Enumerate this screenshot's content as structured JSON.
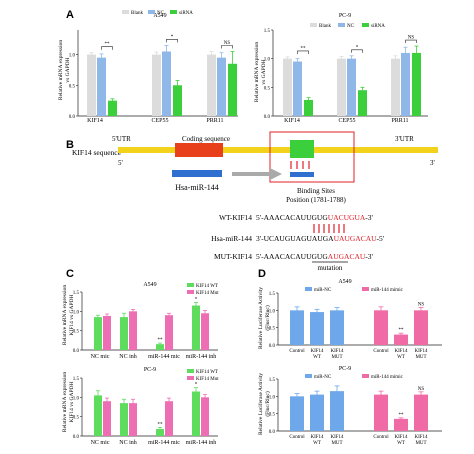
{
  "panels": {
    "a": {
      "letter": "A",
      "ylabel_line1": "Relative mRNA expression",
      "ylabel_line2": "vs GAPDH",
      "legend": [
        "Blank",
        "NC",
        "siRNA"
      ],
      "charts": [
        {
          "title": "A549",
          "categories": [
            "KIF14",
            "CEP55",
            "PRR11"
          ],
          "sig": [
            "**",
            "*",
            "NS"
          ]
        },
        {
          "title": "PC-9",
          "categories": [
            "KIF14",
            "CEP55",
            "PRR11"
          ],
          "sig": [
            "**",
            "*",
            "NS"
          ]
        }
      ]
    },
    "b": {
      "letter": "B",
      "utr5": "5'UTR",
      "coding": "Coding sequence",
      "utr3": "3'UTR",
      "gene_label": "KIF14 sequence",
      "five": "5'",
      "three": "3'",
      "mirna": "Hsa-miR-144",
      "binding_title": "Binding Sites",
      "binding_position": "Position (1781-1788)",
      "wt_label": "WT-KIF14",
      "wt_seq_black": "5'-AAACACAUUGUG",
      "wt_seq_red": "UACUGUA",
      "wt_seq_end": "-3'",
      "mir_label": "Hsa-miR-144",
      "mir_seq_black": "3'-UCAUGUAGUAUGA",
      "mir_seq_red": "UAUGACAU",
      "mir_seq_end": "-5'",
      "mut_label": "MUT-KIF14",
      "mut_seq_black": "5'-AAACACAUUGUG",
      "mut_seq_red": "AUGACAU",
      "mut_seq_end": "-3'",
      "mutation_label": "mutation"
    },
    "c": {
      "letter": "C",
      "ylabel_line1": "Relative mRNA expression",
      "ylabel_line2": "KIF14 vs GAPDH",
      "legend": [
        "KIF14 WT",
        "KIF14 Mut"
      ],
      "charts": [
        {
          "title": "A549",
          "sig": [
            "",
            "",
            "**",
            "*"
          ]
        },
        {
          "title": "PC-9",
          "sig": [
            "",
            "",
            "**",
            "*"
          ]
        }
      ],
      "categories": [
        "NC mic",
        "NC inh",
        "miR-144 mic",
        "miR-144 inh"
      ]
    },
    "d": {
      "letter": "D",
      "ylabel_line1": "Relative Luciferase Activity",
      "ylabel_line2": "(Fluc/Rluc)",
      "legend": [
        "miR-NC",
        "miR-144 mimic"
      ],
      "charts": [
        {
          "title": "A549",
          "sig": [
            "",
            "",
            "",
            "",
            "**",
            "NS"
          ]
        },
        {
          "title": "PC-9",
          "sig": [
            "",
            "",
            "",
            "",
            "**",
            "NS"
          ]
        }
      ],
      "categories": [
        "Control",
        "KIF14 WT",
        "KIF14 MUT",
        "Control",
        "KIF14 WT",
        "KIF14 MUT"
      ]
    }
  },
  "colors": {
    "blank": "#dcdcdc",
    "nc": "#8fb8e8",
    "sirna": "#3ccf3c",
    "wt": "#5ddc5d",
    "mut": "#ee6eb4",
    "mirnc": "#6fa8ea",
    "mimic": "#f06aa6",
    "gene_bar": "#f2d21a",
    "coding": "#e8401a",
    "site": "#3ccf3c",
    "mir_bar": "#2f6fd0",
    "red_text": "#e0202a"
  },
  "chart_data": [
    {
      "type": "bar",
      "title": "A549",
      "categories": [
        "KIF14",
        "CEP55",
        "PRR11"
      ],
      "series": [
        {
          "name": "Blank",
          "values": [
            1.0,
            1.0,
            1.0
          ]
        },
        {
          "name": "NC",
          "values": [
            0.95,
            1.05,
            0.95
          ]
        },
        {
          "name": "siRNA",
          "values": [
            0.25,
            0.5,
            0.85
          ]
        }
      ],
      "errors": [
        [
          0.03,
          0.04,
          0.05
        ],
        [
          0.06,
          0.1,
          0.08
        ],
        [
          0.03,
          0.08,
          0.2
        ]
      ],
      "ylim": [
        0,
        1.4
      ],
      "yticks": [
        0,
        0.5,
        1.0
      ]
    },
    {
      "type": "bar",
      "title": "PC-9",
      "categories": [
        "KIF14",
        "CEP55",
        "PRR11"
      ],
      "series": [
        {
          "name": "Blank",
          "values": [
            1.0,
            1.0,
            1.0
          ]
        },
        {
          "name": "NC",
          "values": [
            0.95,
            1.0,
            1.1
          ]
        },
        {
          "name": "siRNA",
          "values": [
            0.28,
            0.45,
            1.1
          ]
        }
      ],
      "errors": [
        [
          0.03,
          0.04,
          0.05
        ],
        [
          0.05,
          0.05,
          0.1
        ],
        [
          0.04,
          0.05,
          0.12
        ]
      ],
      "ylim": [
        0,
        1.5
      ],
      "yticks": [
        0,
        0.5,
        1.0,
        1.5
      ]
    },
    {
      "type": "bar",
      "title": "A549",
      "categories": [
        "NC mic",
        "NC inh",
        "miR-144 mic",
        "miR-144 inh"
      ],
      "series": [
        {
          "name": "KIF14 WT",
          "values": [
            0.85,
            0.85,
            0.15,
            1.15
          ]
        },
        {
          "name": "KIF14 Mut",
          "values": [
            0.88,
            1.0,
            0.9,
            0.95
          ]
        }
      ],
      "errors": [
        [
          0.05,
          0.1,
          0.03,
          0.08
        ],
        [
          0.05,
          0.05,
          0.05,
          0.07
        ]
      ],
      "ylim": [
        0,
        1.5
      ],
      "yticks": [
        0,
        0.5,
        1.0,
        1.5
      ]
    },
    {
      "type": "bar",
      "title": "PC-9",
      "categories": [
        "NC mic",
        "NC inh",
        "miR-144 mic",
        "miR-144 inh"
      ],
      "series": [
        {
          "name": "KIF14 WT",
          "values": [
            1.05,
            0.85,
            0.18,
            1.15
          ]
        },
        {
          "name": "KIF14 Mut",
          "values": [
            0.9,
            0.85,
            0.9,
            1.0
          ]
        }
      ],
      "errors": [
        [
          0.12,
          0.1,
          0.04,
          0.1
        ],
        [
          0.08,
          0.1,
          0.08,
          0.07
        ]
      ],
      "ylim": [
        0,
        1.5
      ],
      "yticks": [
        0,
        0.5,
        1.0,
        1.5
      ]
    },
    {
      "type": "bar",
      "title": "A549",
      "categories": [
        "Control",
        "KIF14 WT",
        "KIF14 MUT",
        "Control",
        "KIF14 WT",
        "KIF14 MUT"
      ],
      "series": [
        {
          "name": "miR-NC",
          "values": [
            1.0,
            0.95,
            1.0,
            null,
            null,
            null
          ]
        },
        {
          "name": "miR-144 mimic",
          "values": [
            null,
            null,
            null,
            1.0,
            0.3,
            1.0
          ]
        }
      ],
      "errors": [
        [
          0.1,
          0.08,
          0.08
        ],
        [
          0.1,
          0.04,
          0.08
        ]
      ],
      "ylim": [
        0,
        1.5
      ],
      "yticks": [
        0,
        0.5,
        1.0,
        1.5
      ]
    },
    {
      "type": "bar",
      "title": "PC-9",
      "categories": [
        "Control",
        "KIF14 WT",
        "KIF14 MUT",
        "Control",
        "KIF14 WT",
        "KIF14 MUT"
      ],
      "series": [
        {
          "name": "miR-NC",
          "values": [
            1.0,
            1.05,
            1.15,
            null,
            null,
            null
          ]
        },
        {
          "name": "miR-144 mimic",
          "values": [
            null,
            null,
            null,
            1.05,
            0.35,
            1.05
          ]
        }
      ],
      "errors": [
        [
          0.08,
          0.1,
          0.15
        ],
        [
          0.1,
          0.03,
          0.08
        ]
      ],
      "ylim": [
        0,
        1.5
      ],
      "yticks": [
        0,
        0.5,
        1.0,
        1.5
      ]
    }
  ]
}
